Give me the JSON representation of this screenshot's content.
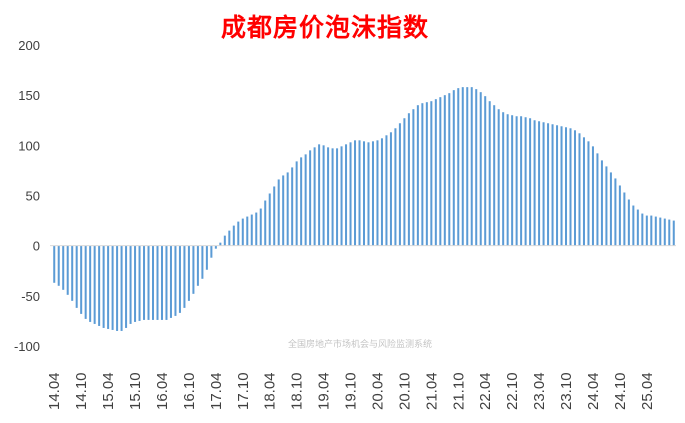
{
  "chart_data": {
    "type": "bar",
    "title": "成都房价泡沫指数",
    "xlabel": "",
    "ylabel": "",
    "ylim": [
      -100,
      200
    ],
    "yticks": [
      -100,
      -50,
      0,
      50,
      100,
      150,
      200
    ],
    "xtick_labels": [
      "14.04",
      "14.10",
      "15.04",
      "15.10",
      "16.04",
      "16.10",
      "17.04",
      "17.10",
      "18.04",
      "18.10",
      "19.04",
      "19.10",
      "20.04",
      "20.10",
      "21.04",
      "21.10",
      "22.04",
      "22.10",
      "23.04",
      "23.10",
      "24.04",
      "24.10",
      "25.04"
    ],
    "grid": false,
    "legend": "none",
    "start_month": "2014-04",
    "end_month": "2025-04",
    "values": [
      -37,
      -40,
      -44,
      -49,
      -55,
      -62,
      -68,
      -73,
      -76,
      -78,
      -80,
      -82,
      -83,
      -84,
      -85,
      -85,
      -82,
      -78,
      -76,
      -75,
      -74,
      -74,
      -74,
      -74,
      -74,
      -74,
      -72,
      -70,
      -67,
      -62,
      -55,
      -48,
      -40,
      -33,
      -24,
      -12,
      -3,
      3,
      10,
      15,
      20,
      24,
      27,
      29,
      31,
      33,
      37,
      45,
      52,
      59,
      66,
      70,
      73,
      78,
      84,
      88,
      91,
      95,
      98,
      101,
      100,
      98,
      97,
      97,
      99,
      101,
      103,
      105,
      105,
      104,
      103,
      104,
      105,
      107,
      110,
      113,
      117,
      122,
      127,
      132,
      136,
      140,
      142,
      143,
      144,
      146,
      148,
      150,
      152,
      155,
      157,
      158,
      158,
      158,
      156,
      153,
      149,
      144,
      140,
      136,
      133,
      131,
      130,
      129,
      129,
      128,
      127,
      125,
      124,
      123,
      122,
      121,
      120,
      119,
      118,
      117,
      115,
      112,
      108,
      104,
      99,
      92,
      85,
      79,
      73,
      67,
      60,
      53,
      46,
      40,
      36,
      32,
      30,
      30,
      29,
      28,
      27,
      26,
      25
    ],
    "bar_color": "#5b9bd5"
  },
  "watermark": "全国房地产市场机会与风险监测系统",
  "colors": {
    "title": "#ff0000",
    "bars": "#5b9bd5",
    "axis": "#d9d9d9",
    "text": "#404040"
  }
}
